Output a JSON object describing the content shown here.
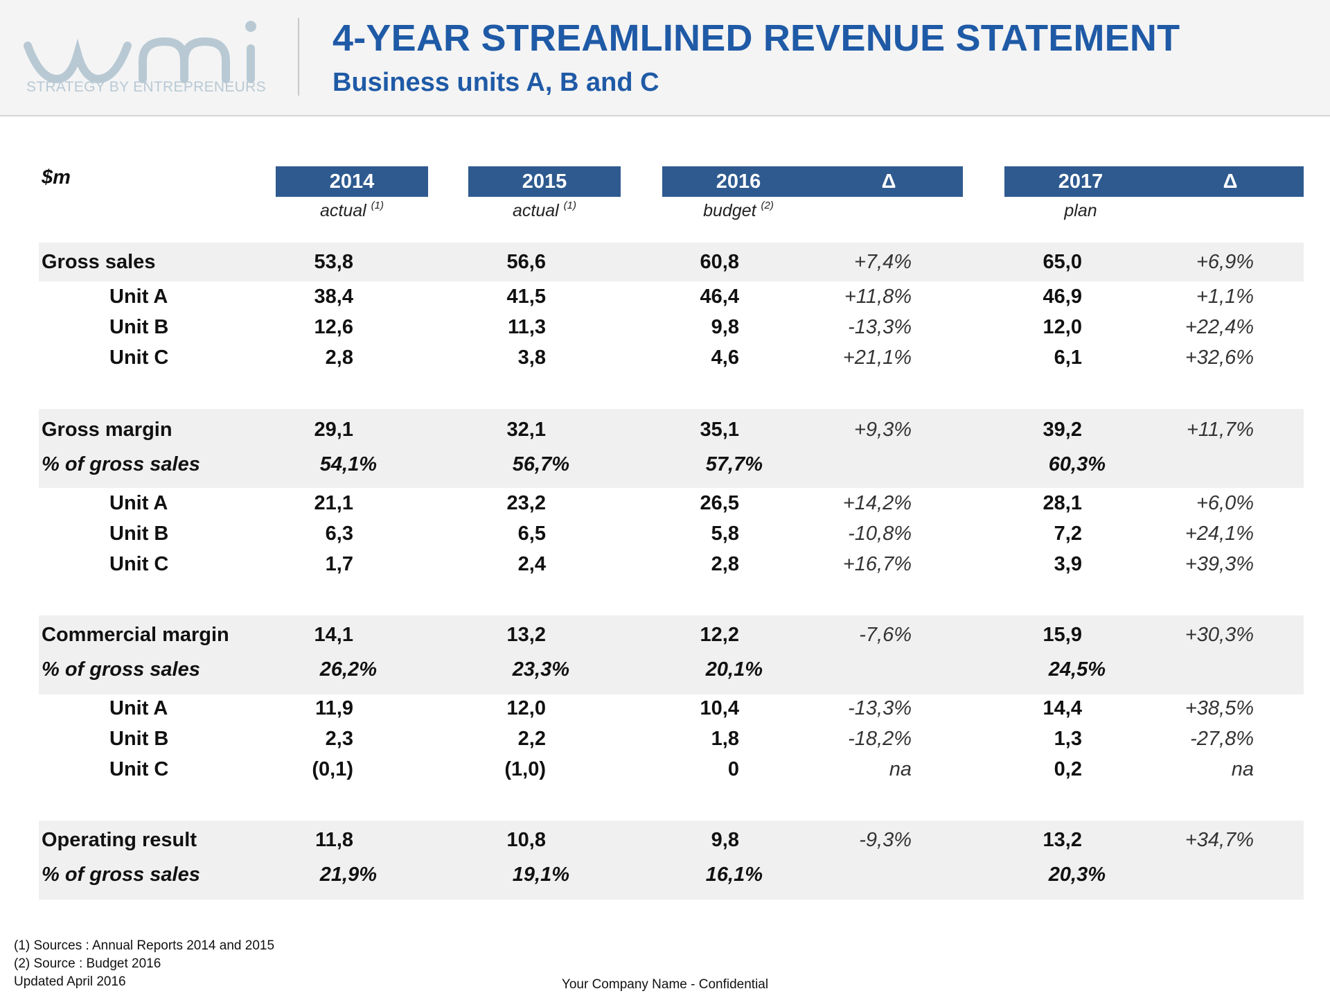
{
  "header": {
    "logo_sub": "STRATEGY BY ENTREPRENEURS",
    "title": "4-YEAR STREAMLINED REVENUE STATEMENT",
    "subtitle": "Business units A, B and C"
  },
  "table": {
    "unit_label": "$m",
    "columns": [
      {
        "year": "2014",
        "note": "actual",
        "ref": "(1)"
      },
      {
        "year": "2015",
        "note": "actual",
        "ref": "(1)"
      },
      {
        "year": "2016",
        "note": "budget",
        "ref": "(2)"
      },
      {
        "year": "Δ"
      },
      {
        "year": "2017",
        "note": "plan"
      },
      {
        "year": "Δ"
      }
    ],
    "rows": {
      "gross_sales": {
        "label": "Gross sales",
        "v": [
          "53,8",
          "56,6",
          "60,8",
          "+7,4%",
          "65,0",
          "+6,9%"
        ]
      },
      "gs_a": {
        "label": "Unit A",
        "v": [
          "38,4",
          "41,5",
          "46,4",
          "+11,8%",
          "46,9",
          "+1,1%"
        ]
      },
      "gs_b": {
        "label": "Unit B",
        "v": [
          "12,6",
          "11,3",
          "9,8",
          "-13,3%",
          "12,0",
          "+22,4%"
        ]
      },
      "gs_c": {
        "label": "Unit C",
        "v": [
          "2,8",
          "3,8",
          "4,6",
          "+21,1%",
          "6,1",
          "+32,6%"
        ]
      },
      "gross_margin": {
        "label": "Gross margin",
        "v": [
          "29,1",
          "32,1",
          "35,1",
          "+9,3%",
          "39,2",
          "+11,7%"
        ]
      },
      "gm_pct": {
        "label": "% of gross sales",
        "v": [
          "54,1%",
          "56,7%",
          "57,7%",
          "60,3%"
        ]
      },
      "gm_a": {
        "label": "Unit A",
        "v": [
          "21,1",
          "23,2",
          "26,5",
          "+14,2%",
          "28,1",
          "+6,0%"
        ]
      },
      "gm_b": {
        "label": "Unit B",
        "v": [
          "6,3",
          "6,5",
          "5,8",
          "-10,8%",
          "7,2",
          "+24,1%"
        ]
      },
      "gm_c": {
        "label": "Unit C",
        "v": [
          "1,7",
          "2,4",
          "2,8",
          "+16,7%",
          "3,9",
          "+39,3%"
        ]
      },
      "commercial_margin": {
        "label": "Commercial margin",
        "v": [
          "14,1",
          "13,2",
          "12,2",
          "-7,6%",
          "15,9",
          "+30,3%"
        ]
      },
      "cm_pct": {
        "label": "% of gross sales",
        "v": [
          "26,2%",
          "23,3%",
          "20,1%",
          "24,5%"
        ]
      },
      "cm_a": {
        "label": "Unit A",
        "v": [
          "11,9",
          "12,0",
          "10,4",
          "-13,3%",
          "14,4",
          "+38,5%"
        ]
      },
      "cm_b": {
        "label": "Unit B",
        "v": [
          "2,3",
          "2,2",
          "1,8",
          "-18,2%",
          "1,3",
          "-27,8%"
        ]
      },
      "cm_c": {
        "label": "Unit C",
        "v": [
          "(0,1)",
          "(1,0)",
          "0",
          "na",
          "0,2",
          "na"
        ]
      },
      "operating_result": {
        "label": "Operating result",
        "v": [
          "11,8",
          "10,8",
          "9,8",
          "-9,3%",
          "13,2",
          "+34,7%"
        ]
      },
      "or_pct": {
        "label": "% of gross sales",
        "v": [
          "21,9%",
          "19,1%",
          "16,1%",
          "20,3%"
        ]
      }
    }
  },
  "footer": {
    "note1": "(1) Sources : Annual Reports 2014 and 2015",
    "note2": "(2) Source : Budget 2016",
    "updated": "Updated April 2016",
    "confidential": "Your Company Name - Confidential"
  },
  "colors": {
    "title": "#1f5aa6",
    "header_fill": "#2e5a8f",
    "band": "#f0f0f0",
    "logo": "#b8c9d4"
  }
}
